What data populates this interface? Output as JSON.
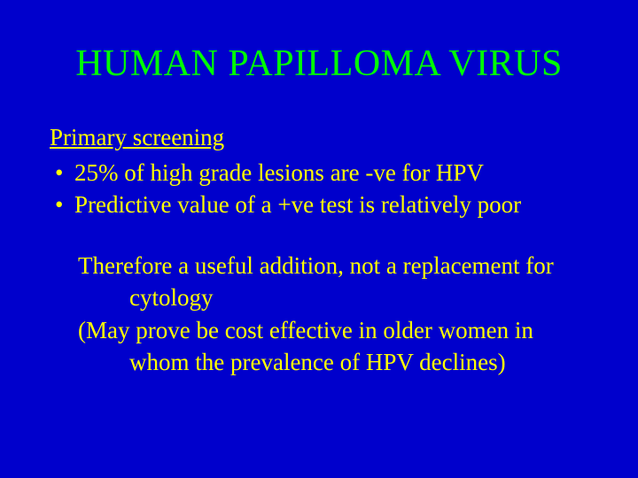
{
  "slide": {
    "title": "HUMAN PAPILLOMA VIRUS",
    "section_heading": "Primary screening",
    "bullets": [
      "25% of high grade lesions are -ve for HPV",
      "Predictive value of a +ve test is relatively poor"
    ],
    "conclusion": [
      "Therefore a useful addition, not a replacement for cytology",
      "(May prove be cost effective in older women in whom the prevalence of HPV declines)"
    ],
    "colors": {
      "background": "#0000cc",
      "title": "#00ff00",
      "body_text": "#ffff00"
    },
    "typography": {
      "font_family": "Times New Roman",
      "title_fontsize_pt": 32,
      "body_fontsize_pt": 20
    }
  }
}
